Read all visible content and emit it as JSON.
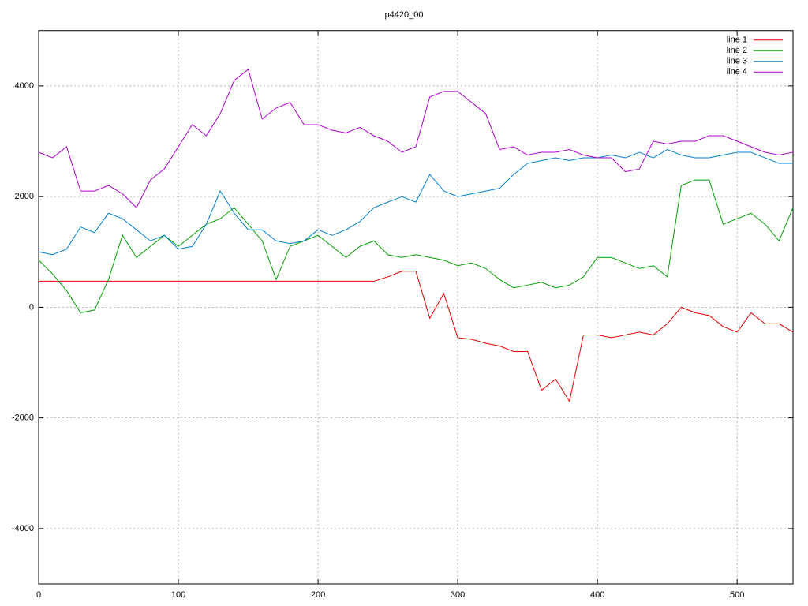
{
  "chart_data": {
    "type": "line",
    "title": "p4420_00",
    "x": [
      0,
      10,
      20,
      30,
      40,
      50,
      60,
      70,
      80,
      90,
      100,
      110,
      120,
      130,
      140,
      150,
      160,
      170,
      180,
      190,
      200,
      210,
      220,
      230,
      240,
      250,
      260,
      270,
      280,
      290,
      300,
      310,
      320,
      330,
      340,
      350,
      360,
      370,
      380,
      390,
      400,
      410,
      420,
      430,
      440,
      450,
      460,
      470,
      480,
      490,
      500,
      510,
      520,
      530,
      540
    ],
    "series": [
      {
        "name": "line 1",
        "color": "#e00000",
        "values": [
          470,
          470,
          470,
          470,
          470,
          470,
          470,
          470,
          470,
          470,
          470,
          470,
          470,
          470,
          470,
          470,
          470,
          470,
          470,
          470,
          470,
          470,
          470,
          470,
          470,
          550,
          650,
          650,
          -200,
          250,
          -550,
          -580,
          -650,
          -700,
          -800,
          -800,
          -1500,
          -1300,
          -1700,
          -500,
          -500,
          -550,
          -500,
          -450,
          -500,
          -300,
          0,
          -100,
          -150,
          -350,
          -450,
          -100,
          -300,
          -300,
          -450
        ]
      },
      {
        "name": "line 2",
        "color": "#00a000",
        "values": [
          850,
          600,
          300,
          -100,
          -50,
          500,
          1300,
          900,
          1100,
          1300,
          1100,
          1300,
          1500,
          1600,
          1800,
          1500,
          1200,
          500,
          1100,
          1200,
          1300,
          1100,
          900,
          1100,
          1200,
          950,
          900,
          950,
          900,
          850,
          750,
          800,
          700,
          500,
          350,
          400,
          450,
          350,
          400,
          550,
          900,
          900,
          800,
          700,
          750,
          550,
          2200,
          2300,
          2300,
          1500,
          1600,
          1700,
          1500,
          1200,
          1800
        ]
      },
      {
        "name": "line 3",
        "color": "#0080d0",
        "values": [
          1000,
          950,
          1050,
          1450,
          1350,
          1700,
          1600,
          1400,
          1200,
          1300,
          1050,
          1100,
          1500,
          2100,
          1700,
          1400,
          1400,
          1200,
          1150,
          1200,
          1400,
          1300,
          1400,
          1550,
          1800,
          1900,
          2000,
          1900,
          2400,
          2100,
          2000,
          2050,
          2100,
          2150,
          2400,
          2600,
          2650,
          2700,
          2650,
          2700,
          2700,
          2750,
          2700,
          2800,
          2700,
          2850,
          2750,
          2700,
          2700,
          2750,
          2800,
          2800,
          2700,
          2600,
          2600
        ]
      },
      {
        "name": "line 4",
        "color": "#b000d0",
        "values": [
          2800,
          2700,
          2900,
          2100,
          2100,
          2200,
          2050,
          1800,
          2300,
          2500,
          2900,
          3300,
          3100,
          3500,
          4100,
          4300,
          3400,
          3600,
          3700,
          3300,
          3300,
          3200,
          3150,
          3250,
          3100,
          3000,
          2800,
          2900,
          3800,
          3900,
          3900,
          3700,
          3500,
          2850,
          2900,
          2750,
          2800,
          2800,
          2850,
          2750,
          2700,
          2700,
          2450,
          2500,
          3000,
          2950,
          3000,
          3000,
          3100,
          3100,
          3000,
          2900,
          2800,
          2750,
          2800
        ]
      }
    ],
    "xlim": [
      0,
      540
    ],
    "ylim": [
      -5000,
      5000
    ],
    "xticks": [
      0,
      100,
      200,
      300,
      400,
      500
    ],
    "yticks": [
      -4000,
      -2000,
      0,
      2000,
      4000
    ],
    "grid": true,
    "legend": "top right"
  }
}
